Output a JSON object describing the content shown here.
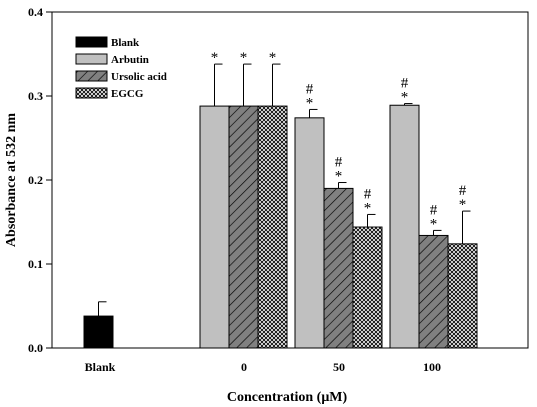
{
  "chart_data": {
    "type": "bar",
    "xlabel": "Concentration (μM)",
    "ylabel": "Absorbance at 532 nm",
    "ylim": [
      0,
      0.4
    ],
    "yticks": [
      "0.0",
      "0.1",
      "0.2",
      "0.3",
      "0.4"
    ],
    "yticks_values": [
      0,
      0.1,
      0.2,
      0.3,
      0.4
    ],
    "categories": [
      "Blank",
      "0",
      "50",
      "100"
    ],
    "legend_position": "top-left",
    "grid": false,
    "series": [
      {
        "name": "Blank",
        "pattern": "solid-black",
        "values": [
          0.038,
          null,
          null,
          null
        ],
        "errors": [
          0.017,
          null,
          null,
          null
        ],
        "annotations": [
          "",
          "",
          "",
          ""
        ]
      },
      {
        "name": "Arbutin",
        "pattern": "solid-gray",
        "values": [
          null,
          0.288,
          0.274,
          0.289
        ],
        "errors": [
          null,
          0.05,
          0.01,
          0.002
        ],
        "annotations": [
          "",
          "*",
          "#*",
          "#*"
        ]
      },
      {
        "name": "Ursolic acid",
        "pattern": "diagonal-hatch",
        "values": [
          null,
          0.288,
          0.19,
          0.134
        ],
        "errors": [
          null,
          0.05,
          0.007,
          0.006
        ],
        "annotations": [
          "",
          "*",
          "#*",
          "#*"
        ]
      },
      {
        "name": "EGCG",
        "pattern": "crosshatch",
        "values": [
          null,
          0.288,
          0.144,
          0.124
        ],
        "errors": [
          null,
          0.05,
          0.015,
          0.039
        ],
        "annotations": [
          "",
          "*",
          "#*",
          "#*"
        ]
      }
    ],
    "colors": {
      "blank_fill": "#000000",
      "arbutin_fill": "#c0c0c0",
      "ursolic_fill": "#808080",
      "egcg_fill": "#ffffff",
      "stroke": "#000000"
    }
  }
}
